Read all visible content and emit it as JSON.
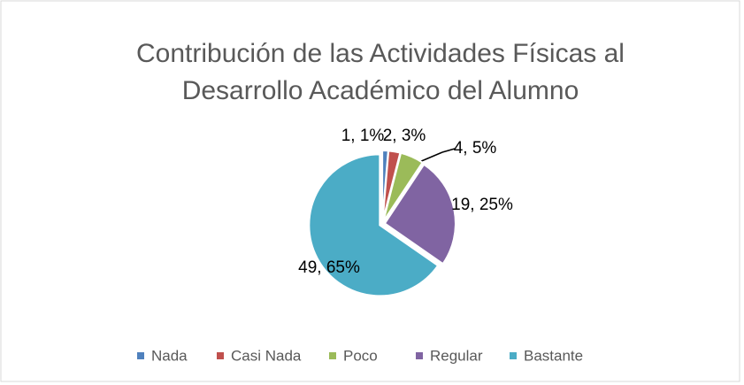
{
  "chart_data": {
    "type": "pie",
    "title": [
      "Contribución de las Actividades Físicas al",
      "Desarrollo Académico del Alumno"
    ],
    "categories": [
      "Nada",
      "Casi Nada",
      "Poco",
      "Regular",
      "Bastante"
    ],
    "values": [
      1,
      2,
      4,
      19,
      49
    ],
    "value_labels": [
      "1, 1%",
      "2, 3%",
      "4, 5%",
      "19, 25%",
      "49, 65%"
    ],
    "colors": [
      "#4f81bd",
      "#c0504d",
      "#9bbb59",
      "#8064a2",
      "#4bacc6"
    ],
    "legend": "bottom"
  }
}
